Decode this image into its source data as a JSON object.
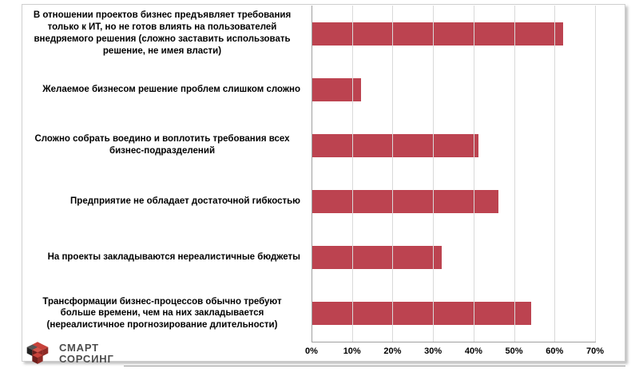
{
  "chart_data": {
    "type": "bar",
    "orientation": "horizontal",
    "title": "",
    "categories": [
      "В отношении проектов бизнес предъявляет требования только к ИТ, но не готов влиять на пользователей внедряемого решения (сложно заставить использовать решение, не имея власти)",
      "Желаемое бизнесом решение проблем слишком сложно",
      "Сложно собрать воедино и воплотить требования всех бизнес-подразделений",
      "Предприятие не обладает достаточной гибкостью",
      "На проекты закладываются нереалистичные бюджеты",
      "Трансформации бизнес-процессов обычно требуют больше времени, чем на них закладывается (нереалистичное прогнозирование длительности)"
    ],
    "values": [
      62,
      12,
      41,
      46,
      32,
      54
    ],
    "unit": "%",
    "xlim": [
      0,
      70
    ],
    "xticks": [
      "0%",
      "10%",
      "20%",
      "30%",
      "40%",
      "50%",
      "60%",
      "70%"
    ],
    "grid": true,
    "legend": false,
    "bar_color": "#bc4350",
    "gridline_color": "#d9d9d9",
    "axis_color": "#a0a0a0"
  },
  "logo": {
    "line1": "СМАРТ",
    "line2": "СОРСИНГ"
  }
}
